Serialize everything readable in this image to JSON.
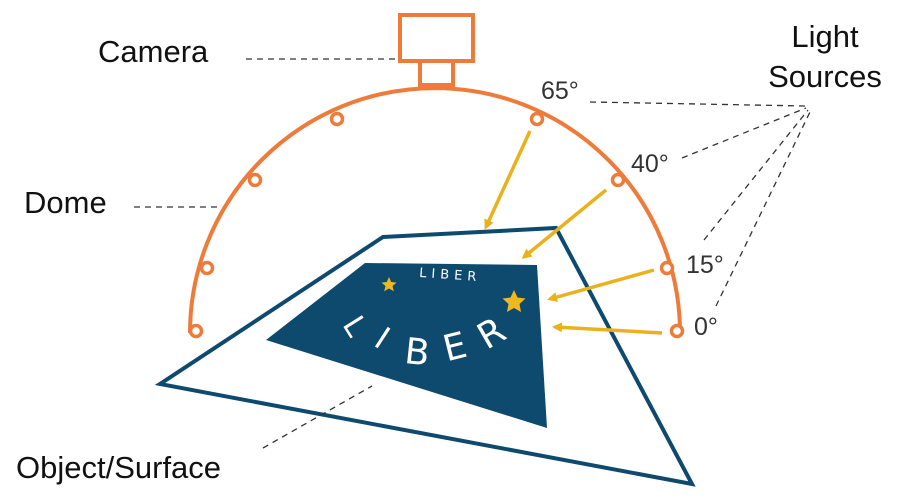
{
  "labels": {
    "camera": "Camera",
    "dome": "Dome",
    "light_sources_line1": "Light",
    "light_sources_line2": "Sources",
    "object_surface": "Object/Surface"
  },
  "angles": {
    "a65": "65°",
    "a40": "40°",
    "a15": "15°",
    "a0": "0°"
  },
  "logo": {
    "small_text": "LIBER",
    "big_letters": [
      "L",
      "I",
      "B",
      "E",
      "R"
    ]
  },
  "colors": {
    "dome": "#ee7b3a",
    "arrows": "#eab11c",
    "surface": "#0e4a6e",
    "logo_star": "#f0b820"
  }
}
